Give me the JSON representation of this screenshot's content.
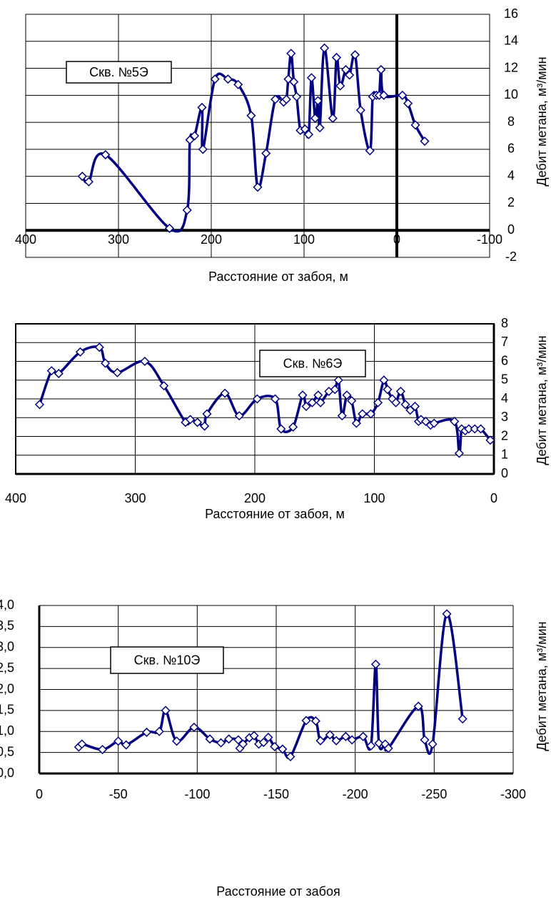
{
  "chart_data": [
    {
      "type": "line",
      "annotation": "Скв. №5Э",
      "x_label": "Расстояние от забоя, м",
      "y_label": "Дебит метана, м³/мин",
      "x": [
        339,
        332,
        314,
        245,
        226,
        223,
        218,
        210,
        209,
        196,
        182,
        171,
        157,
        150,
        141,
        131,
        122,
        119,
        117,
        114,
        111,
        108,
        104,
        99,
        95,
        92,
        88,
        85,
        83,
        78,
        69,
        65,
        61,
        55,
        51,
        45,
        39,
        29,
        26,
        22,
        19,
        17,
        14,
        -6,
        -12,
        -20,
        -30
      ],
      "values": [
        4.0,
        3.6,
        5.6,
        0.15,
        1.5,
        6.7,
        7.0,
        9.1,
        6.0,
        11.2,
        11.2,
        10.8,
        8.5,
        3.2,
        5.7,
        9.7,
        9.5,
        9.7,
        11.2,
        13.1,
        11.0,
        9.9,
        7.4,
        7.5,
        7.1,
        11.3,
        8.3,
        9.6,
        7.6,
        13.5,
        8.3,
        12.8,
        10.7,
        11.9,
        11.5,
        13.0,
        8.9,
        5.9,
        9.9,
        10.0,
        10.0,
        11.9,
        10.0,
        10.0,
        9.4,
        7.8,
        6.6
      ],
      "color": "#000080",
      "xlim": [
        400,
        -100
      ],
      "xticks": [
        400,
        300,
        200,
        100,
        0,
        -100
      ],
      "ylim": [
        -2,
        16
      ],
      "yticks": [
        -2,
        0,
        2,
        4,
        6,
        8,
        10,
        12,
        14,
        16
      ],
      "grid": true,
      "axes_at_zero": true,
      "y_axis_side": "right"
    },
    {
      "type": "line",
      "annotation": "Скв. №6Э",
      "x_label": "Расстояние от забоя, м",
      "y_label": "Дебит метана, м³/мин",
      "x": [
        380,
        370,
        364,
        346,
        330,
        325,
        315,
        292,
        276,
        258,
        254,
        248,
        242,
        240,
        225,
        213,
        198,
        183,
        178,
        168,
        160,
        157,
        152,
        147,
        145,
        138,
        133,
        130,
        127,
        123,
        119,
        115,
        110,
        103,
        97,
        92,
        89,
        85,
        82,
        78,
        74,
        70,
        66,
        63,
        61,
        57,
        53,
        50,
        33,
        29,
        27,
        24,
        21,
        16,
        11,
        3
      ],
      "values": [
        3.7,
        5.5,
        5.35,
        6.5,
        6.75,
        5.9,
        5.4,
        6.0,
        4.7,
        2.75,
        2.9,
        2.75,
        2.55,
        3.2,
        4.3,
        3.1,
        4.0,
        4.0,
        2.4,
        2.5,
        4.2,
        3.6,
        3.8,
        4.2,
        3.8,
        4.4,
        4.5,
        5.0,
        3.1,
        4.2,
        3.9,
        2.7,
        3.2,
        3.2,
        3.8,
        5.0,
        4.5,
        4.0,
        3.8,
        4.4,
        3.7,
        3.4,
        3.6,
        2.8,
        2.9,
        2.8,
        2.6,
        2.7,
        2.8,
        1.1,
        2.4,
        2.3,
        2.4,
        2.4,
        2.4,
        1.8
      ],
      "color": "#000080",
      "xlim": [
        400,
        0
      ],
      "xticks": [
        400,
        300,
        200,
        100,
        0
      ],
      "ylim": [
        0,
        8
      ],
      "yticks": [
        0,
        1,
        2,
        3,
        4,
        5,
        6,
        7,
        8
      ],
      "grid": true,
      "axes_at_zero": false,
      "y_axis_side": "right"
    },
    {
      "type": "line",
      "annotation": "Скв. №10Э",
      "x_label": "Расстояние от забоя",
      "y_label": "Дебит метана, м³/мин",
      "x": [
        -25,
        -27,
        -40,
        -50,
        -55,
        -68,
        -76,
        -80,
        -87,
        -98,
        -108,
        -115,
        -120,
        -126,
        -127,
        -129,
        -133,
        -136,
        -139,
        -142,
        -145,
        -149,
        -154,
        -159,
        -169,
        -175,
        -178,
        -184,
        -188,
        -194,
        -198,
        -205,
        -210,
        -213,
        -215,
        -219,
        -221,
        -240,
        -244,
        -249,
        -258,
        -268
      ],
      "values": [
        0.63,
        0.7,
        0.57,
        0.77,
        0.68,
        0.98,
        1.0,
        1.5,
        0.77,
        1.1,
        0.82,
        0.73,
        0.82,
        0.8,
        0.6,
        0.7,
        0.85,
        0.9,
        0.7,
        0.74,
        0.86,
        0.64,
        0.58,
        0.4,
        1.26,
        1.25,
        0.78,
        0.92,
        0.78,
        0.88,
        0.8,
        0.88,
        0.66,
        2.6,
        0.72,
        0.7,
        0.6,
        1.6,
        0.8,
        0.7,
        3.8,
        1.3
      ],
      "color": "#000080",
      "xlim": [
        0,
        -300
      ],
      "xticks": [
        0,
        -50,
        -100,
        -150,
        -200,
        -250,
        -300
      ],
      "ylim": [
        0,
        4
      ],
      "yticks": [
        {
          "value": 0,
          "label": "0,0"
        },
        {
          "value": 0.5,
          "label": "0,5"
        },
        {
          "value": 1,
          "label": "1,0"
        },
        {
          "value": 1.5,
          "label": "1,5"
        },
        {
          "value": 2,
          "label": "2,0"
        },
        {
          "value": 2.5,
          "label": "2,5"
        },
        {
          "value": 3,
          "label": "3,0"
        },
        {
          "value": 3.5,
          "label": "3,5"
        },
        {
          "value": 4,
          "label": "4,0"
        }
      ],
      "grid": true,
      "axes_at_zero": false,
      "y_axis_side": "left"
    }
  ]
}
